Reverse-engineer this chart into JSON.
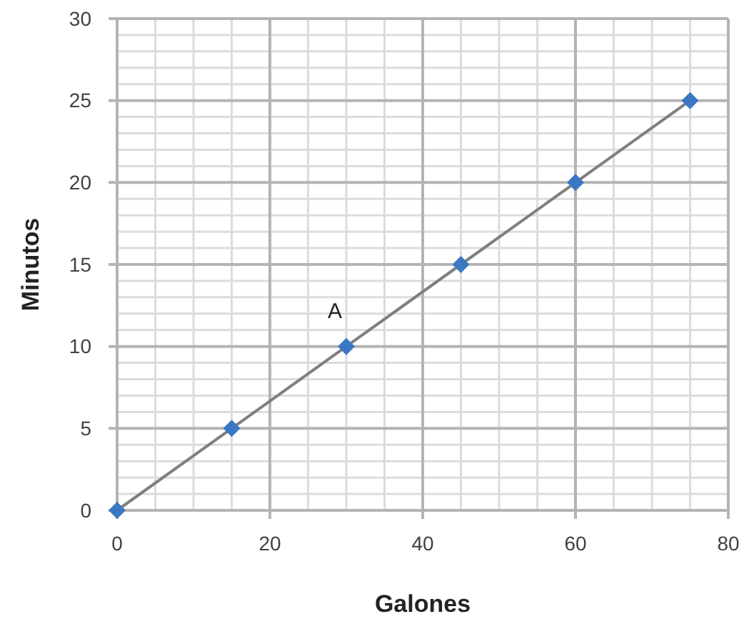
{
  "chart_data": {
    "type": "line",
    "xlabel": "Galones",
    "ylabel": "Minutos",
    "x": [
      0,
      15,
      30,
      45,
      60,
      75
    ],
    "series": [
      {
        "color": "#7f7f7f",
        "values": [
          0,
          5,
          10,
          15,
          20,
          25
        ],
        "marker": "none"
      },
      {
        "type": "scatter",
        "color": "#3b78c4",
        "values": [
          0,
          5,
          10,
          15,
          20,
          25
        ],
        "marker": "diamond"
      }
    ],
    "xlim": [
      0,
      80
    ],
    "xticks": [
      0,
      20,
      40,
      60,
      80
    ],
    "ylim": [
      0,
      30
    ],
    "yticks": [
      0,
      5,
      10,
      15,
      20,
      25,
      30
    ],
    "grid": true,
    "annotations": [
      {
        "text": "A",
        "x": 30,
        "y": 10
      }
    ]
  }
}
